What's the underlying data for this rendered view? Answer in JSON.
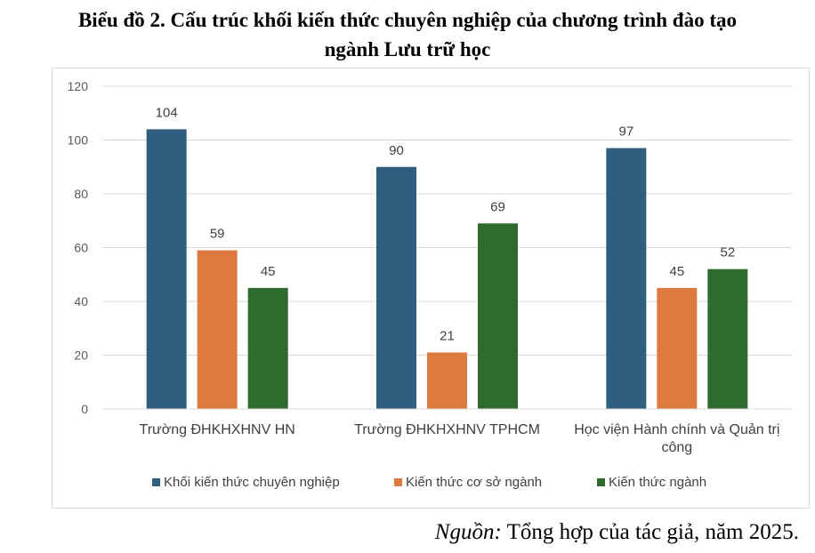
{
  "title_line1": "Biểu đồ 2. Cấu trúc khối kiến thức chuyên nghiệp của chương trình đào tạo",
  "title_line2": "ngành Lưu trữ học",
  "source": {
    "label": "Nguồn:",
    "text": "Tổng hợp của tác giả, năm 2025."
  },
  "chart_data": {
    "type": "bar",
    "title": "",
    "xlabel": "",
    "ylabel": "",
    "ylim": [
      0,
      120
    ],
    "yticks": [
      0,
      20,
      40,
      60,
      80,
      100,
      120
    ],
    "grid": true,
    "legend_position": "bottom",
    "categories": [
      [
        "Trường ĐHKHXHNV HN"
      ],
      [
        "Trường ĐHKHXHNV TPHCM"
      ],
      [
        "Học viện Hành chính và Quản trị",
        "công"
      ]
    ],
    "series": [
      {
        "name": "Khối kiến thức chuyên nghiệp",
        "color": "#2e5f7e",
        "values": [
          104,
          90,
          97
        ]
      },
      {
        "name": "Kiến thức cơ sở ngành",
        "color": "#dd7a3f",
        "values": [
          59,
          21,
          45
        ]
      },
      {
        "name": "Kiến thức ngành",
        "color": "#2f6b2f",
        "values": [
          45,
          69,
          52
        ]
      }
    ]
  }
}
